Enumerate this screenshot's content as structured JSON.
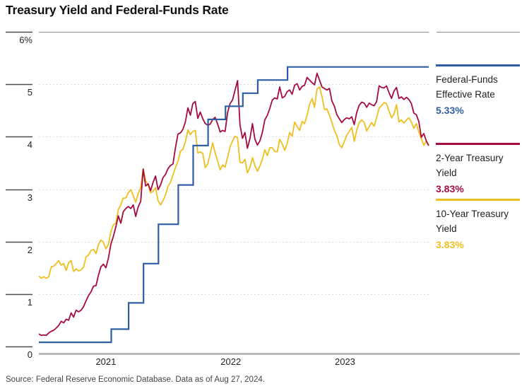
{
  "title": "Treasury Yield and Federal-Funds Rate",
  "source": "Source: Federal Reserve Economic Database. Data as of Aug 27, 2024.",
  "legend": {
    "items": [
      {
        "label": "Federal-Funds Effective Rate",
        "value": "5.33%",
        "color": "#2E5FA5"
      },
      {
        "label": "2-Year Treasury Yield",
        "value": "3.83%",
        "color": "#A50C3C"
      },
      {
        "label": "10-Year Treasury Yield",
        "value": "3.83%",
        "color": "#EFBF1E"
      }
    ]
  },
  "chart_data": {
    "type": "line",
    "title": "Treasury Yield and Federal-Funds Rate",
    "unit": "%",
    "ylim": [
      0,
      6
    ],
    "grid": "dashed-horizontal",
    "legend_position": "right",
    "y_ticks": [
      {
        "label": "6%",
        "value": 6
      },
      {
        "label": "5",
        "value": 5
      },
      {
        "label": "4",
        "value": 4
      },
      {
        "label": "3",
        "value": 3
      },
      {
        "label": "2",
        "value": 2
      },
      {
        "label": "1",
        "value": 1
      },
      {
        "label": "0",
        "value": 0
      }
    ],
    "x_range_days": 1099,
    "x_ticks": [
      {
        "label": "2021",
        "day": 189
      },
      {
        "label": "2022",
        "day": 541
      },
      {
        "label": "2023",
        "day": 863
      }
    ],
    "series": [
      {
        "name": "10-Year Treasury Yield",
        "color": "#EFBF1E",
        "style": "line",
        "last_value": 3.83,
        "start_day": 0,
        "step_days": 7,
        "values": [
          1.34,
          1.3,
          1.33,
          1.3,
          1.33,
          1.52,
          1.53,
          1.58,
          1.64,
          1.55,
          1.58,
          1.45,
          1.6,
          1.64,
          1.43,
          1.48,
          1.44,
          1.46,
          1.51,
          1.71,
          1.74,
          1.83,
          1.85,
          1.77,
          1.94,
          2.03,
          1.99,
          1.86,
          1.94,
          2.19,
          2.32,
          2.35,
          2.61,
          2.7,
          2.83,
          2.83,
          2.93,
          2.99,
          2.88,
          2.75,
          2.91,
          3.03,
          3.39,
          3.16,
          3.09,
          2.93,
          2.96,
          3.03,
          2.78,
          2.7,
          2.78,
          2.89,
          3.05,
          3.13,
          3.27,
          3.41,
          3.53,
          3.72,
          3.76,
          3.9,
          4.13,
          4.04,
          4.1,
          4.12,
          3.69,
          3.71,
          3.68,
          3.41,
          3.48,
          3.68,
          3.88,
          3.69,
          3.54,
          3.37,
          3.46,
          3.42,
          3.61,
          3.81,
          3.92,
          4.01,
          3.98,
          3.51,
          3.5,
          3.57,
          3.31,
          3.42,
          3.6,
          3.45,
          3.34,
          3.44,
          3.57,
          3.75,
          3.64,
          3.79,
          3.79,
          3.72,
          3.71,
          3.95,
          3.86,
          3.74,
          3.87,
          4.08,
          4.01,
          4.28,
          4.19,
          4.12,
          4.29,
          4.25,
          4.41,
          4.61,
          4.73,
          4.56,
          4.91,
          4.95,
          4.77,
          4.52,
          4.53,
          4.41,
          4.27,
          4.12,
          4.02,
          3.85,
          3.79,
          3.91,
          4.03,
          4.1,
          4.18,
          3.91,
          4.12,
          4.27,
          4.32,
          4.27,
          4.11,
          4.19,
          4.27,
          4.2,
          4.36,
          4.55,
          4.59,
          4.65,
          4.63,
          4.49,
          4.36,
          4.43,
          4.61,
          4.28,
          4.32,
          4.26,
          4.32,
          4.36,
          4.28,
          4.16,
          4.25,
          4.09,
          3.96,
          3.84,
          3.91,
          3.83
        ]
      },
      {
        "name": "2-Year Treasury Yield",
        "color": "#A50C3C",
        "style": "line",
        "last_value": 3.83,
        "start_day": 0,
        "step_days": 7,
        "values": [
          0.24,
          0.21,
          0.22,
          0.21,
          0.26,
          0.29,
          0.31,
          0.35,
          0.4,
          0.48,
          0.45,
          0.52,
          0.5,
          0.64,
          0.56,
          0.69,
          0.66,
          0.69,
          0.76,
          0.87,
          0.97,
          1.04,
          1.15,
          1.16,
          1.36,
          1.52,
          1.57,
          1.5,
          1.68,
          1.95,
          2.1,
          2.28,
          2.49,
          2.35,
          2.57,
          2.63,
          2.67,
          2.63,
          2.7,
          2.48,
          2.66,
          2.77,
          3.38,
          3.06,
          3.1,
          2.97,
          3.13,
          3.25,
          2.99,
          3.08,
          3.22,
          3.28,
          3.39,
          3.45,
          3.48,
          3.79,
          4.05,
          4.07,
          4.14,
          4.28,
          4.55,
          4.41,
          4.63,
          4.67,
          4.35,
          4.47,
          4.34,
          4.25,
          4.22,
          4.24,
          4.33,
          4.37,
          4.24,
          4.09,
          4.12,
          4.1,
          4.46,
          4.63,
          4.7,
          4.89,
          5.07,
          4.22,
          3.97,
          4.08,
          3.78,
          3.97,
          4.25,
          3.95,
          3.84,
          3.92,
          4.08,
          4.32,
          4.41,
          4.54,
          4.7,
          4.74,
          4.72,
          4.95,
          4.74,
          4.77,
          4.86,
          4.89,
          4.81,
          4.98,
          5.01,
          4.89,
          4.96,
          4.98,
          5.13,
          5.08,
          5.03,
          4.99,
          5.21,
          5.08,
          4.95,
          4.92,
          4.89,
          4.92,
          4.68,
          4.58,
          4.42,
          4.34,
          4.27,
          4.33,
          4.36,
          4.34,
          4.38,
          4.23,
          4.46,
          4.6,
          4.66,
          4.64,
          4.56,
          4.64,
          4.61,
          4.59,
          4.67,
          4.97,
          4.94,
          4.93,
          4.97,
          4.84,
          4.73,
          4.87,
          4.94,
          4.73,
          4.76,
          4.71,
          4.75,
          4.71,
          4.63,
          4.45,
          4.42,
          4.29,
          3.99,
          4.06,
          3.92,
          3.83
        ]
      },
      {
        "name": "Federal-Funds Effective Rate",
        "color": "#2E5FA5",
        "style": "step",
        "last_value": 5.33,
        "points": [
          [
            0,
            0.08
          ],
          [
            204,
            0.33
          ],
          [
            253,
            0.83
          ],
          [
            295,
            1.58
          ],
          [
            337,
            2.33
          ],
          [
            393,
            3.08
          ],
          [
            435,
            3.83
          ],
          [
            477,
            4.33
          ],
          [
            526,
            4.58
          ],
          [
            575,
            4.83
          ],
          [
            617,
            5.08
          ],
          [
            701,
            5.33
          ],
          [
            1099,
            5.33
          ]
        ]
      }
    ]
  }
}
